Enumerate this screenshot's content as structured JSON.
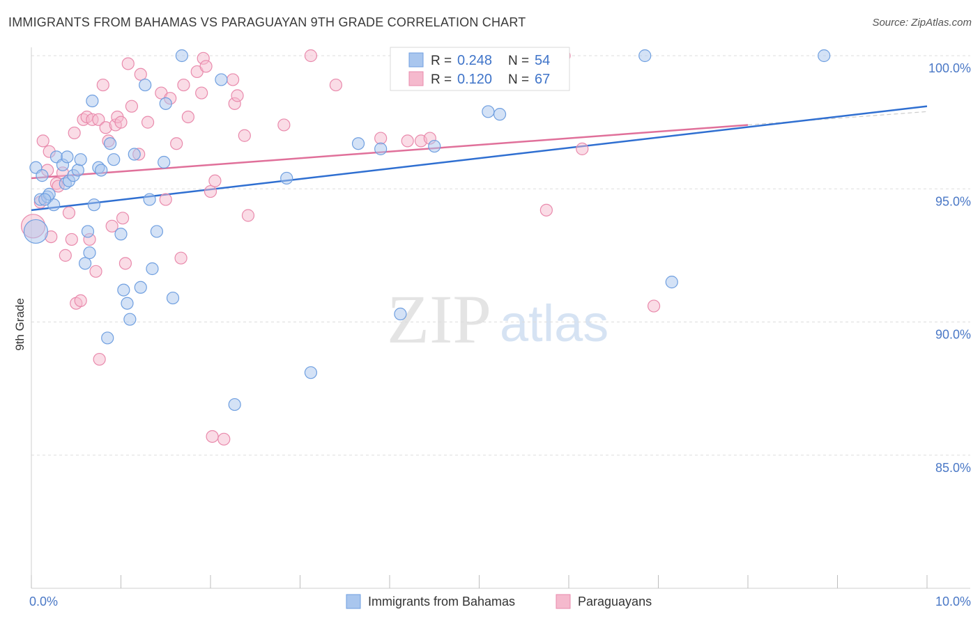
{
  "header": {
    "title": "IMMIGRANTS FROM BAHAMAS VS PARAGUAYAN 9TH GRADE CORRELATION CHART",
    "source": "Source: ZipAtlas.com"
  },
  "watermark": {
    "zip": "ZIP",
    "atlas": "atlas"
  },
  "legend": {
    "r_label": "R =",
    "n_label": "N =",
    "series": [
      {
        "r": "0.248",
        "n": "54"
      },
      {
        "r": "0.120",
        "n": "67"
      }
    ]
  },
  "colors": {
    "blue_fill": "#a9c6ee",
    "blue_stroke": "#6f9fe0",
    "blue_line": "#2f6fd1",
    "pink_fill": "#f5b9cd",
    "pink_stroke": "#e98aac",
    "pink_line": "#e0709a",
    "grid": "#dddddd",
    "tick_text": "#4a78c6"
  },
  "chart_data": {
    "type": "scatter",
    "title": "IMMIGRANTS FROM BAHAMAS VS PARAGUAYAN 9TH GRADE CORRELATION CHART",
    "xlabel": "",
    "ylabel": "9th Grade",
    "xlim": [
      0.0,
      10.0
    ],
    "ylim": [
      80.0,
      101.0
    ],
    "x_tick_labels": [
      "0.0%",
      "10.0%"
    ],
    "y_ticks": [
      85.0,
      90.0,
      95.0,
      100.0
    ],
    "y_tick_labels": [
      "85.0%",
      "90.0%",
      "95.0%",
      "100.0%"
    ],
    "grid": true,
    "legend_position": "top-center",
    "series": [
      {
        "name": "Immigrants from Bahamas",
        "r": 0.248,
        "n": 54,
        "trend": {
          "x": [
            0.0,
            10.0
          ],
          "y": [
            94.2,
            98.1
          ]
        },
        "points": [
          {
            "x": 0.05,
            "y": 95.8
          },
          {
            "x": 0.05,
            "y": 93.4,
            "big": true
          },
          {
            "x": 0.1,
            "y": 94.6
          },
          {
            "x": 0.12,
            "y": 95.5
          },
          {
            "x": 0.18,
            "y": 94.7
          },
          {
            "x": 0.2,
            "y": 94.8
          },
          {
            "x": 0.25,
            "y": 94.4
          },
          {
            "x": 0.28,
            "y": 96.2
          },
          {
            "x": 0.35,
            "y": 95.9
          },
          {
            "x": 0.38,
            "y": 95.2
          },
          {
            "x": 0.4,
            "y": 96.2
          },
          {
            "x": 0.42,
            "y": 95.3
          },
          {
            "x": 0.47,
            "y": 95.5
          },
          {
            "x": 0.52,
            "y": 95.7
          },
          {
            "x": 0.55,
            "y": 96.1
          },
          {
            "x": 0.6,
            "y": 92.2
          },
          {
            "x": 0.63,
            "y": 93.4
          },
          {
            "x": 0.65,
            "y": 92.6
          },
          {
            "x": 0.68,
            "y": 98.3
          },
          {
            "x": 0.7,
            "y": 94.4
          },
          {
            "x": 0.75,
            "y": 95.8
          },
          {
            "x": 0.78,
            "y": 95.7
          },
          {
            "x": 0.85,
            "y": 89.4
          },
          {
            "x": 0.88,
            "y": 96.7
          },
          {
            "x": 0.92,
            "y": 96.1
          },
          {
            "x": 1.0,
            "y": 93.3
          },
          {
            "x": 1.03,
            "y": 91.2
          },
          {
            "x": 1.07,
            "y": 90.7
          },
          {
            "x": 1.1,
            "y": 90.1
          },
          {
            "x": 1.15,
            "y": 96.3
          },
          {
            "x": 1.22,
            "y": 91.3
          },
          {
            "x": 1.27,
            "y": 98.9
          },
          {
            "x": 1.32,
            "y": 94.6
          },
          {
            "x": 1.35,
            "y": 92.0
          },
          {
            "x": 1.4,
            "y": 93.4
          },
          {
            "x": 1.48,
            "y": 96.0
          },
          {
            "x": 1.5,
            "y": 98.2
          },
          {
            "x": 1.58,
            "y": 90.9
          },
          {
            "x": 1.68,
            "y": 100.0
          },
          {
            "x": 2.12,
            "y": 99.1
          },
          {
            "x": 2.27,
            "y": 86.9
          },
          {
            "x": 2.85,
            "y": 95.4
          },
          {
            "x": 3.12,
            "y": 88.1
          },
          {
            "x": 3.65,
            "y": 96.7
          },
          {
            "x": 3.9,
            "y": 96.5
          },
          {
            "x": 4.12,
            "y": 90.3
          },
          {
            "x": 4.5,
            "y": 96.6
          },
          {
            "x": 5.1,
            "y": 97.9
          },
          {
            "x": 5.23,
            "y": 97.8
          },
          {
            "x": 5.76,
            "y": 100.0
          },
          {
            "x": 7.15,
            "y": 91.5
          },
          {
            "x": 6.85,
            "y": 100.0
          },
          {
            "x": 8.85,
            "y": 100.0
          },
          {
            "x": 0.15,
            "y": 94.6
          }
        ]
      },
      {
        "name": "Paraguayans",
        "r": 0.12,
        "n": 67,
        "trend": {
          "x": [
            0.0,
            8.0
          ],
          "y": [
            95.4,
            97.4
          ]
        },
        "dashed_extension": {
          "x": [
            8.0,
            10.0
          ],
          "y": [
            97.4,
            97.9
          ]
        },
        "points": [
          {
            "x": 0.02,
            "y": 93.6,
            "big": true
          },
          {
            "x": 0.1,
            "y": 94.5
          },
          {
            "x": 0.13,
            "y": 96.8
          },
          {
            "x": 0.18,
            "y": 95.7
          },
          {
            "x": 0.2,
            "y": 96.4
          },
          {
            "x": 0.22,
            "y": 93.2
          },
          {
            "x": 0.28,
            "y": 95.2
          },
          {
            "x": 0.3,
            "y": 95.1
          },
          {
            "x": 0.35,
            "y": 95.6
          },
          {
            "x": 0.38,
            "y": 92.5
          },
          {
            "x": 0.42,
            "y": 94.1
          },
          {
            "x": 0.45,
            "y": 93.1
          },
          {
            "x": 0.48,
            "y": 97.1
          },
          {
            "x": 0.5,
            "y": 90.7
          },
          {
            "x": 0.55,
            "y": 90.8
          },
          {
            "x": 0.58,
            "y": 97.6
          },
          {
            "x": 0.62,
            "y": 97.7
          },
          {
            "x": 0.65,
            "y": 93.1
          },
          {
            "x": 0.68,
            "y": 97.6
          },
          {
            "x": 0.72,
            "y": 91.9
          },
          {
            "x": 0.75,
            "y": 97.6
          },
          {
            "x": 0.76,
            "y": 88.6
          },
          {
            "x": 0.8,
            "y": 98.9
          },
          {
            "x": 0.83,
            "y": 97.3
          },
          {
            "x": 0.86,
            "y": 96.8
          },
          {
            "x": 0.9,
            "y": 93.6
          },
          {
            "x": 0.94,
            "y": 97.4
          },
          {
            "x": 0.96,
            "y": 97.7
          },
          {
            "x": 1.0,
            "y": 97.5
          },
          {
            "x": 1.02,
            "y": 93.9
          },
          {
            "x": 1.05,
            "y": 92.2
          },
          {
            "x": 1.08,
            "y": 99.7
          },
          {
            "x": 1.12,
            "y": 98.1
          },
          {
            "x": 1.2,
            "y": 96.3
          },
          {
            "x": 1.22,
            "y": 99.3
          },
          {
            "x": 1.3,
            "y": 97.5
          },
          {
            "x": 1.45,
            "y": 98.6
          },
          {
            "x": 1.5,
            "y": 94.6
          },
          {
            "x": 1.55,
            "y": 98.4
          },
          {
            "x": 1.62,
            "y": 96.7
          },
          {
            "x": 1.67,
            "y": 92.4
          },
          {
            "x": 1.7,
            "y": 98.9
          },
          {
            "x": 1.75,
            "y": 97.7
          },
          {
            "x": 1.85,
            "y": 99.4
          },
          {
            "x": 1.9,
            "y": 98.6
          },
          {
            "x": 1.92,
            "y": 99.9
          },
          {
            "x": 1.95,
            "y": 99.6
          },
          {
            "x": 2.0,
            "y": 94.9
          },
          {
            "x": 2.02,
            "y": 85.7
          },
          {
            "x": 2.05,
            "y": 95.3
          },
          {
            "x": 2.15,
            "y": 85.6
          },
          {
            "x": 2.25,
            "y": 99.1
          },
          {
            "x": 2.27,
            "y": 98.2
          },
          {
            "x": 2.3,
            "y": 98.5
          },
          {
            "x": 2.38,
            "y": 97.0
          },
          {
            "x": 2.42,
            "y": 94.0
          },
          {
            "x": 2.82,
            "y": 97.4
          },
          {
            "x": 3.12,
            "y": 100.0
          },
          {
            "x": 3.4,
            "y": 98.9
          },
          {
            "x": 3.9,
            "y": 96.9
          },
          {
            "x": 4.2,
            "y": 96.8
          },
          {
            "x": 4.35,
            "y": 96.8
          },
          {
            "x": 4.45,
            "y": 96.9
          },
          {
            "x": 5.75,
            "y": 94.2
          },
          {
            "x": 5.95,
            "y": 100.0
          },
          {
            "x": 6.15,
            "y": 96.5
          },
          {
            "x": 6.95,
            "y": 90.6
          }
        ]
      }
    ]
  },
  "bottom_legend": [
    {
      "label": "Immigrants from Bahamas"
    },
    {
      "label": "Paraguayans"
    }
  ]
}
